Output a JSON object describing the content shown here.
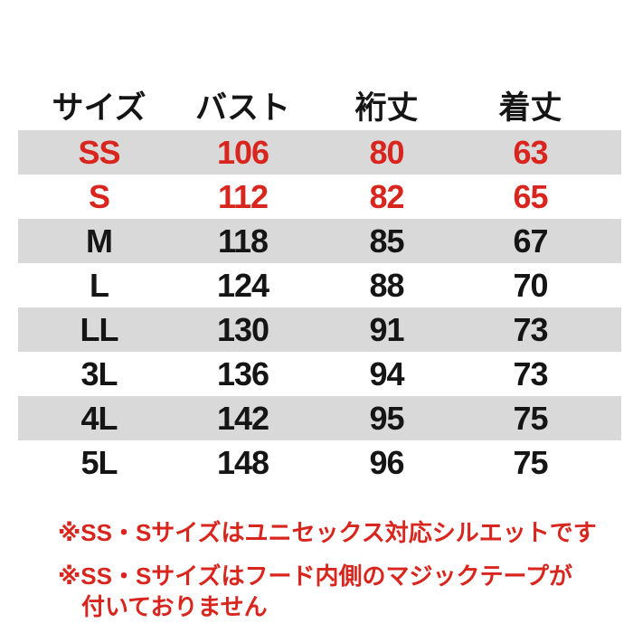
{
  "colors": {
    "background": "#ffffff",
    "stripe_gray": "#d9d9d9",
    "highlight_red": "#d8261f",
    "text_black": "#151515"
  },
  "chart_data": {
    "type": "table",
    "title": "",
    "columns": [
      "サイズ",
      "バスト",
      "裄丈",
      "着丈"
    ],
    "column_keys": [
      "size",
      "bust",
      "sleeve-length",
      "body-length"
    ],
    "rows": [
      {
        "cells": [
          "SS",
          "106",
          "80",
          "63"
        ],
        "red": true,
        "striped": true
      },
      {
        "cells": [
          "S",
          "112",
          "82",
          "65"
        ],
        "red": true,
        "striped": false
      },
      {
        "cells": [
          "M",
          "118",
          "85",
          "67"
        ],
        "red": false,
        "striped": true
      },
      {
        "cells": [
          "L",
          "124",
          "88",
          "70"
        ],
        "red": false,
        "striped": false
      },
      {
        "cells": [
          "LL",
          "130",
          "91",
          "73"
        ],
        "red": false,
        "striped": true
      },
      {
        "cells": [
          "3L",
          "136",
          "94",
          "73"
        ],
        "red": false,
        "striped": false
      },
      {
        "cells": [
          "4L",
          "142",
          "95",
          "75"
        ],
        "red": false,
        "striped": true
      },
      {
        "cells": [
          "5L",
          "148",
          "96",
          "75"
        ],
        "red": false,
        "striped": false
      }
    ],
    "highlighted_sizes": [
      "SS",
      "S"
    ]
  },
  "notes": [
    {
      "lines": [
        "※SS・Sサイズはユニセックス対応シルエットです"
      ]
    },
    {
      "lines": [
        "※SS・Sサイズはフード内側のマジックテープが",
        "付いておりません"
      ]
    }
  ]
}
